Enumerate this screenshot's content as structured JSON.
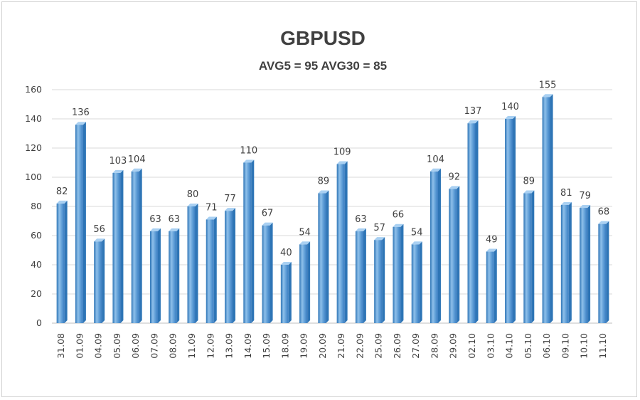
{
  "chart_data": {
    "type": "bar",
    "title": "GBPUSD",
    "subtitle": "AVG5 = 95 AVG30 = 85",
    "xlabel": "",
    "ylabel": "",
    "ylim": [
      0,
      160
    ],
    "yticks": [
      0,
      20,
      40,
      60,
      80,
      100,
      120,
      140,
      160
    ],
    "grid": true,
    "legend": "none",
    "categories": [
      "31.08",
      "01.09",
      "04.09",
      "05.09",
      "06.09",
      "07.09",
      "08.09",
      "11.09",
      "12.09",
      "13.09",
      "14.09",
      "15.09",
      "18.09",
      "19.09",
      "20.09",
      "21.09",
      "22.09",
      "25.09",
      "26.09",
      "27.09",
      "28.09",
      "29.09",
      "02.10",
      "03.10",
      "04.10",
      "05.10",
      "06.10",
      "09.10",
      "10.10",
      "11.10"
    ],
    "values": [
      82,
      136,
      56,
      103,
      104,
      63,
      63,
      80,
      71,
      77,
      110,
      67,
      40,
      54,
      89,
      109,
      63,
      57,
      66,
      54,
      104,
      92,
      137,
      49,
      140,
      89,
      155,
      81,
      79,
      68
    ],
    "colors": {
      "bar_front": "#5b9bd5",
      "bar_light": "#8fc0ea",
      "bar_dark": "#2e75b6",
      "bar_top": "#a9d0f2",
      "text": "#404040",
      "grid": "#d9d9d9"
    }
  }
}
